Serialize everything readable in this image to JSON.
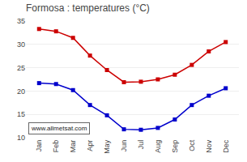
{
  "chart_data": {
    "type": "line",
    "title": "Formosa : temperatures (°C)",
    "categories": [
      "Jan",
      "Feb",
      "Mar",
      "Apr",
      "May",
      "Jun",
      "Jul",
      "Aug",
      "Sep",
      "Oct",
      "Nov",
      "Dec"
    ],
    "series": [
      {
        "color": "#cc0000",
        "marker": "square",
        "values": [
          33.3,
          32.8,
          31.4,
          27.6,
          24.5,
          21.9,
          22.0,
          22.5,
          23.5,
          25.6,
          28.5,
          30.5
        ]
      },
      {
        "color": "#0000cc",
        "marker": "square",
        "values": [
          21.7,
          21.5,
          20.2,
          17.0,
          14.8,
          11.8,
          11.7,
          12.1,
          13.9,
          17.0,
          19.0,
          20.6
        ]
      }
    ],
    "ylim": [
      10,
      35
    ],
    "yticks": [
      10,
      15,
      20,
      25,
      30,
      35
    ],
    "grid": true,
    "annotations": [
      "www.allmetsat.com"
    ]
  }
}
